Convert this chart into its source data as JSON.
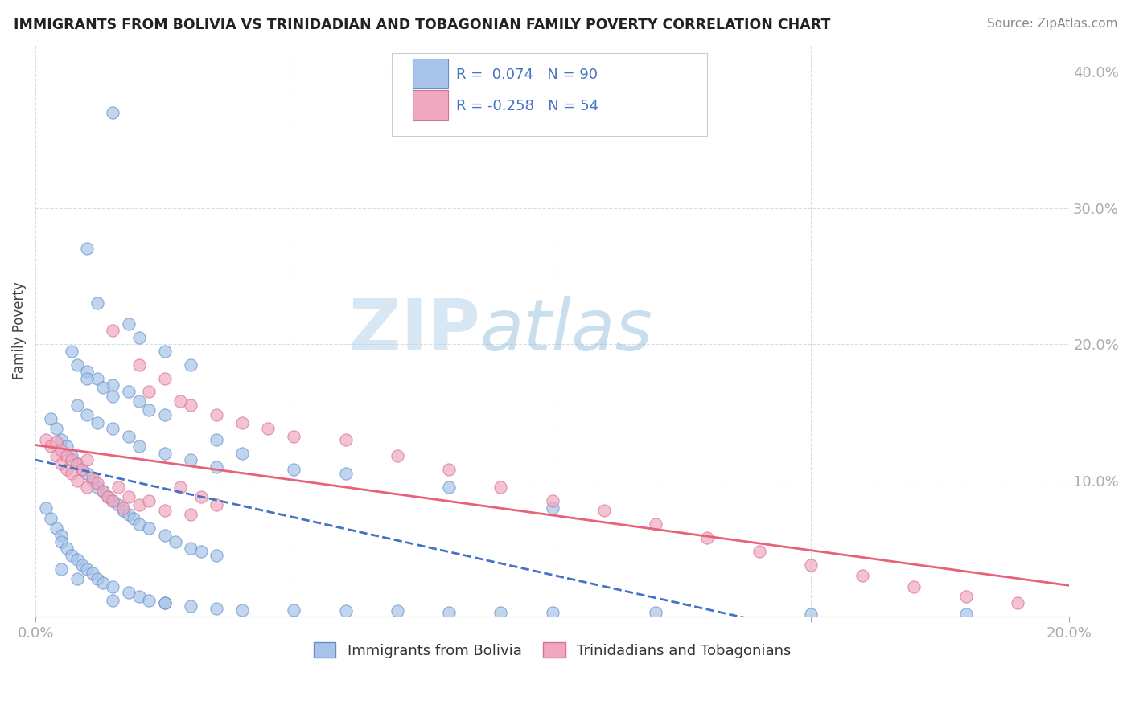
{
  "title": "IMMIGRANTS FROM BOLIVIA VS TRINIDADIAN AND TOBAGONIAN FAMILY POVERTY CORRELATION CHART",
  "source": "Source: ZipAtlas.com",
  "ylabel": "Family Poverty",
  "xlim": [
    0.0,
    0.2
  ],
  "ylim": [
    0.0,
    0.42
  ],
  "bolivia_color": "#a8c4e8",
  "trinidad_color": "#f0a8c0",
  "bolivia_line_color": "#4472c4",
  "trinidad_line_color": "#e8607a",
  "bolivia_dot_edge": "#6090c8",
  "trinidad_dot_edge": "#d87090",
  "R_bolivia": 0.074,
  "N_bolivia": 90,
  "R_trinidad": -0.258,
  "N_trinidad": 54,
  "watermark_zip": "ZIP",
  "watermark_atlas": "atlas",
  "legend_label_1": "Immigrants from Bolivia",
  "legend_label_2": "Trinidadians and Tobagonians"
}
